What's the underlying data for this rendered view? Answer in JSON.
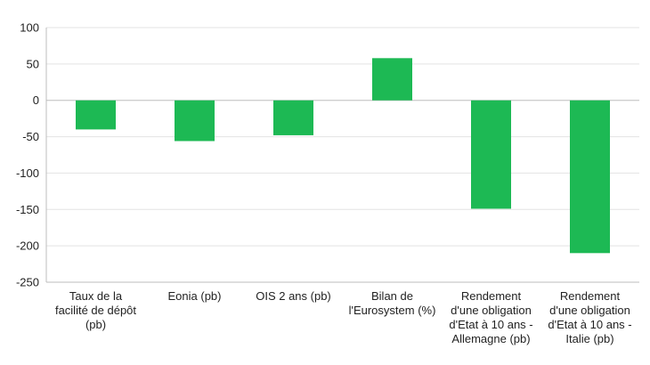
{
  "chart_data": {
    "type": "bar",
    "title": "",
    "xlabel": "",
    "ylabel": "",
    "ylim": [
      -250,
      100
    ],
    "yticks": [
      100,
      50,
      0,
      -50,
      -100,
      -150,
      -200,
      -250
    ],
    "grid": true,
    "legend": "none",
    "bar_color": "#1db954",
    "categories": [
      [
        "Taux de la",
        "facilité de dépôt",
        "(pb)"
      ],
      [
        "Eonia (pb)"
      ],
      [
        "OIS 2 ans (pb)"
      ],
      [
        "Bilan de",
        "l'Eurosystem (%)"
      ],
      [
        "Rendement",
        "d'une obligation",
        "d'Etat à 10 ans -",
        "Allemagne (pb)"
      ],
      [
        "Rendement",
        "d'une obligation",
        "d'Etat à 10 ans -",
        "Italie (pb)"
      ]
    ],
    "values": [
      -40,
      -56,
      -48,
      58,
      -149,
      -210
    ]
  }
}
